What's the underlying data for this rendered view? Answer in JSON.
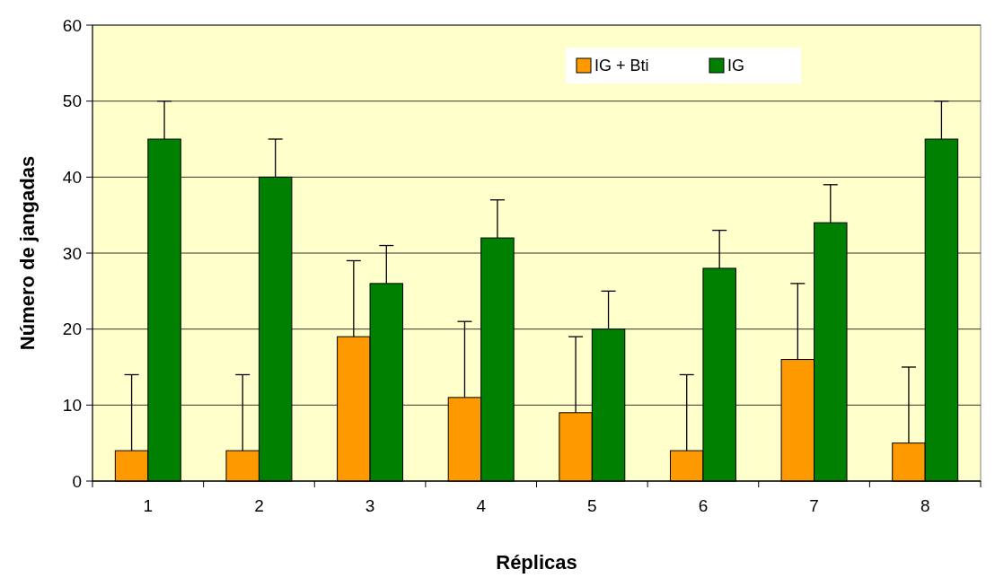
{
  "chart_data": {
    "type": "bar",
    "xlabel": "Réplicas",
    "ylabel": "Número de jangadas",
    "categories": [
      "1",
      "2",
      "3",
      "4",
      "5",
      "6",
      "7",
      "8"
    ],
    "series": [
      {
        "name": "IG + Bti",
        "color": "#ff9900",
        "values": [
          4,
          4,
          19,
          11,
          9,
          4,
          16,
          5
        ],
        "errors": [
          [
            4,
            14
          ],
          [
            4,
            14
          ],
          [
            19,
            29
          ],
          [
            11,
            21
          ],
          [
            9,
            19
          ],
          [
            4,
            14
          ],
          [
            16,
            26
          ],
          [
            5,
            15
          ]
        ]
      },
      {
        "name": "IG",
        "color": "#008000",
        "values": [
          45,
          40,
          26,
          32,
          20,
          28,
          34,
          45
        ],
        "errors": [
          [
            45,
            50
          ],
          [
            40,
            45
          ],
          [
            26,
            31
          ],
          [
            32,
            37
          ],
          [
            20,
            25
          ],
          [
            28,
            33
          ],
          [
            34,
            39
          ],
          [
            45,
            50
          ]
        ]
      }
    ],
    "ylim": [
      0,
      60
    ],
    "yticks": [
      0,
      10,
      20,
      30,
      40,
      50,
      60
    ],
    "grid": "y",
    "legend": "top right"
  }
}
